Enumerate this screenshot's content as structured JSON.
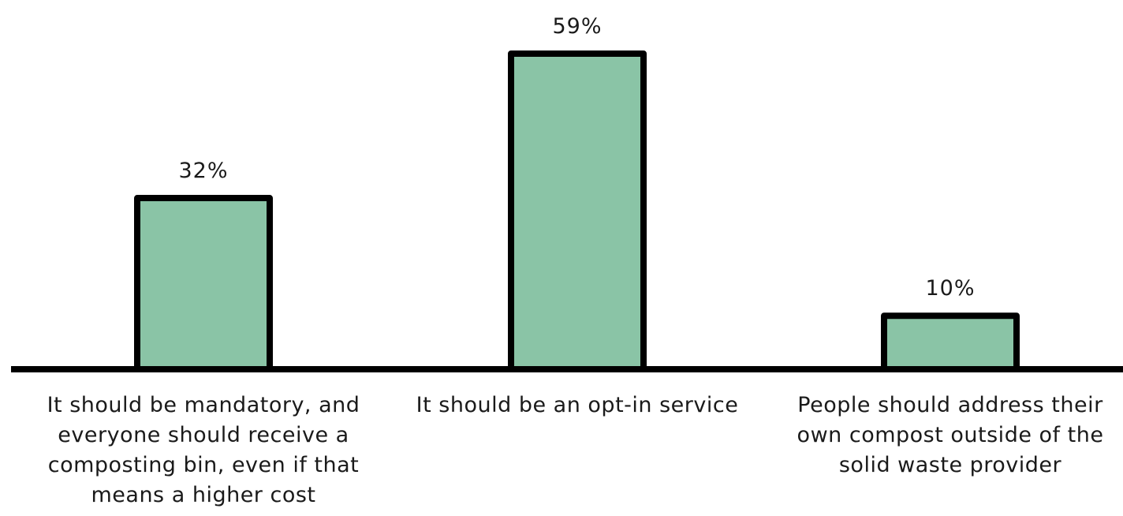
{
  "chart_data": {
    "type": "bar",
    "categories": [
      "It should be mandatory, and everyone should receive a composting bin, even if that means a higher cost",
      "It should be an opt-in service",
      "People should address their own compost outside of the solid waste provider"
    ],
    "category_lines": [
      [
        "It should be mandatory, and",
        "everyone should receive a",
        "composting bin, even if that",
        "means a higher cost"
      ],
      [
        "It should be an opt-in service"
      ],
      [
        "People should address their",
        "own compost outside of the",
        "solid waste provider"
      ]
    ],
    "values": [
      32,
      59,
      10
    ],
    "value_labels": [
      "32%",
      "59%",
      "10%"
    ],
    "ylim": [
      0,
      60
    ],
    "grid": false,
    "legend": "none",
    "title": "",
    "xlabel": "",
    "ylabel": ""
  },
  "colors": {
    "bar_fill": "#8ac4a6",
    "bar_stroke": "#000000",
    "axis": "#000000",
    "text": "#1a1a1a"
  }
}
